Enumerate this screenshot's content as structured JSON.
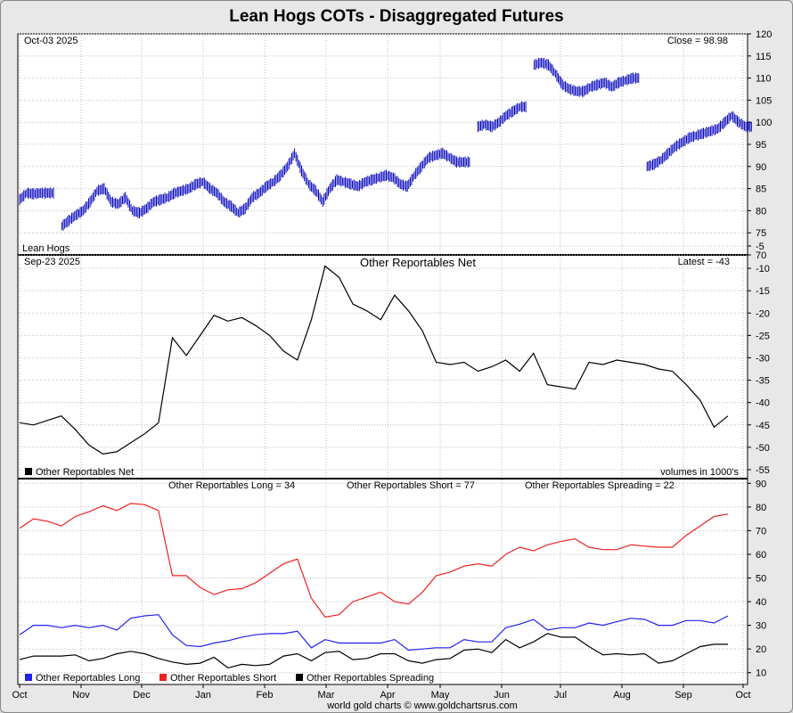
{
  "title": "Lean Hogs COTs - Disaggregated Futures",
  "footer": "world gold charts © www.goldchartsrus.com",
  "colors": {
    "price": "#0000bb",
    "net": "#000000",
    "long": "#2222ee",
    "short": "#ee2222",
    "spreading": "#000000"
  },
  "x_axis_months": [
    "Oct",
    "Nov",
    "Dec",
    "Jan",
    "Feb",
    "Mar",
    "Apr",
    "May",
    "Jun",
    "Jul",
    "Aug",
    "Sep",
    "Oct"
  ],
  "chart_data": [
    {
      "type": "line",
      "panel": "price",
      "date_label": "Oct-03  2025",
      "latest_label": "Close = 98.98",
      "series_label": "Lean Hogs",
      "ylim": [
        70,
        120
      ],
      "yticks": [
        70,
        75,
        80,
        85,
        90,
        95,
        100,
        105,
        110,
        115,
        120
      ],
      "series": [
        {
          "name": "Lean Hogs",
          "values": [
            82.5,
            84.0,
            83.8,
            84.0,
            84.0,
            null,
            76.5,
            77.8,
            79.0,
            80.0,
            82.0,
            84.5,
            85.0,
            82.0,
            81.5,
            83.0,
            80.0,
            79.5,
            80.5,
            82.0,
            82.5,
            83.0,
            84.0,
            84.5,
            85.0,
            86.0,
            86.5,
            85.0,
            84.0,
            82.0,
            81.0,
            79.5,
            80.5,
            83.0,
            84.0,
            85.5,
            86.5,
            88.0,
            90.0,
            93.0,
            89.0,
            86.0,
            84.5,
            82.0,
            85.0,
            87.0,
            86.5,
            86.0,
            85.5,
            86.5,
            87.0,
            87.5,
            88.0,
            87.5,
            86.0,
            85.5,
            88.0,
            90.0,
            92.0,
            92.5,
            93.0,
            92.0,
            91.0,
            91.0,
            null,
            99.0,
            99.5,
            99.0,
            100.0,
            101.5,
            102.5,
            103.5,
            null,
            113.0,
            113.5,
            113.0,
            111.0,
            108.5,
            107.5,
            107.0,
            107.0,
            108.0,
            108.5,
            109.0,
            108.0,
            109.0,
            109.5,
            110.0,
            null,
            90.0,
            90.5,
            91.5,
            93.0,
            94.5,
            95.5,
            96.5,
            97.0,
            97.5,
            98.0,
            98.5,
            100.0,
            101.5,
            100.0,
            99.0
          ]
        }
      ]
    },
    {
      "type": "line",
      "panel": "net",
      "date_label": "Sep-23  2025",
      "title": "Other Reportables Net",
      "latest_label": "Latest = -43",
      "units_label": "volumes in 1000's",
      "ylim": [
        -57,
        -7
      ],
      "yticks": [
        -55,
        -50,
        -45,
        -40,
        -35,
        -30,
        -25,
        -20,
        -15,
        -10,
        -5
      ],
      "series": [
        {
          "name": "Other Reportables Net",
          "values": [
            -44.5,
            -45.0,
            -44.0,
            -43.0,
            -46.0,
            -49.5,
            -51.5,
            -51.0,
            -49.0,
            -47.0,
            -44.5,
            -25.5,
            -29.5,
            -25.0,
            -20.5,
            -21.8,
            -21.0,
            -22.8,
            -25.0,
            -28.5,
            -30.5,
            -21.5,
            -9.5,
            -12.0,
            -18.0,
            -19.5,
            -21.5,
            -16.0,
            -19.5,
            -24.0,
            -31.0,
            -31.5,
            -31.0,
            -33.0,
            -32.0,
            -30.5,
            -33.0,
            -29.0,
            -36.0,
            -36.5,
            -37.0,
            -31.0,
            -31.5,
            -30.5,
            -31.0,
            -31.5,
            -32.5,
            -33.0,
            -36.0,
            -39.5,
            -45.5,
            -43.0
          ]
        }
      ]
    },
    {
      "type": "line",
      "panel": "positions",
      "ylim": [
        5,
        92
      ],
      "yticks": [
        10,
        20,
        30,
        40,
        50,
        60,
        70,
        80,
        90
      ],
      "header_labels": [
        "Other Reportables Long = 34",
        "Other Reportables Short = 77",
        "Other Reportables Spreading = 22"
      ],
      "series": [
        {
          "name": "Other Reportables Long",
          "values": [
            26,
            30,
            30,
            29,
            30,
            29,
            30,
            28,
            33,
            34,
            34.5,
            26,
            21.5,
            21,
            22.5,
            23.5,
            25,
            26,
            26.5,
            26.5,
            27.5,
            20.5,
            24,
            22.5,
            22.5,
            22.5,
            22.5,
            24,
            19.5,
            20,
            20.5,
            20.5,
            24,
            23,
            23,
            29,
            30.5,
            32.5,
            28,
            29,
            29,
            31,
            30,
            31.5,
            33,
            32.5,
            30,
            30,
            32,
            32,
            31,
            34
          ]
        },
        {
          "name": "Other Reportables Short",
          "values": [
            71,
            75,
            74,
            72,
            76,
            78,
            80.5,
            78.5,
            81.5,
            81,
            78.5,
            51,
            51,
            46,
            43,
            45,
            45.5,
            48,
            52,
            56,
            58,
            41.5,
            33.5,
            34.5,
            40,
            42,
            44,
            40,
            39,
            44,
            51,
            52.5,
            55,
            56,
            55,
            60,
            63,
            61.5,
            64,
            65.5,
            66.5,
            63,
            62,
            62,
            64,
            63.5,
            63,
            63,
            68,
            72,
            76,
            77
          ]
        },
        {
          "name": "Other Reportables Spreading",
          "values": [
            15.5,
            17,
            17,
            17,
            17.5,
            15,
            16,
            18,
            19,
            18,
            16,
            14.5,
            13.5,
            14,
            16.5,
            12,
            13.5,
            13,
            13.5,
            17,
            18,
            15,
            18.5,
            19,
            15.5,
            16,
            18,
            18,
            15,
            14,
            15.5,
            16,
            19.5,
            20,
            18.5,
            24,
            20.5,
            23,
            26.5,
            25,
            25,
            21,
            17.5,
            18,
            17.5,
            18,
            14,
            15,
            18,
            21,
            22,
            22
          ]
        }
      ]
    }
  ]
}
